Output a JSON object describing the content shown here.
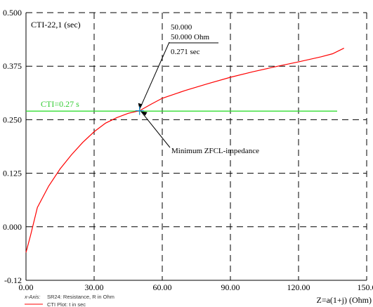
{
  "chart_data": {
    "type": "line",
    "title": "CTI-22,1 (sec)",
    "xlabel": "Z=a(1+j) (Ohm)",
    "ylabel": "",
    "xlim": [
      0,
      150
    ],
    "ylim": [
      -0.125,
      0.5
    ],
    "x_ticks": [
      0,
      30,
      60,
      90,
      120,
      150
    ],
    "x_tick_labels": [
      "0.00",
      "30.00",
      "60.00",
      "90.00",
      "120.00",
      "150.0"
    ],
    "y_ticks": [
      -0.125,
      0,
      0.125,
      0.25,
      0.375,
      0.5
    ],
    "y_tick_labels": [
      "-0.12",
      "0.000",
      "0.125",
      "0.250",
      "0.375",
      "0.500"
    ],
    "grid": true,
    "series": [
      {
        "name": "CTI Plot: t in sec",
        "color": "#ff0000",
        "x": [
          0,
          2,
          5,
          10,
          15,
          20,
          25,
          30,
          35,
          40,
          45,
          50,
          55,
          60,
          70,
          80,
          90,
          100,
          110,
          120,
          130,
          135,
          140
        ],
        "y": [
          -0.06,
          -0.02,
          0.045,
          0.095,
          0.135,
          0.168,
          0.197,
          0.222,
          0.242,
          0.255,
          0.265,
          0.271,
          0.286,
          0.3,
          0.318,
          0.334,
          0.349,
          0.362,
          0.374,
          0.385,
          0.397,
          0.404,
          0.417
        ]
      }
    ],
    "reference_line": {
      "label": "CTI=0.27 s",
      "y": 0.27,
      "color": "#33dd33"
    },
    "marker": {
      "x": 50,
      "y": 0.271,
      "color": "#1a8fd0",
      "label_lines": [
        "50.000",
        "50.000  Ohm",
        "0.271 sec"
      ]
    },
    "annotation": {
      "text": "Minimum ZFCL-impedance"
    },
    "legend": {
      "position": "bottom-left",
      "x_axis_prefix": "x-Axis:",
      "x_axis_text": "SR24: Resistance, R in Ohm",
      "series_text": "CTI Plot: t in sec"
    }
  }
}
